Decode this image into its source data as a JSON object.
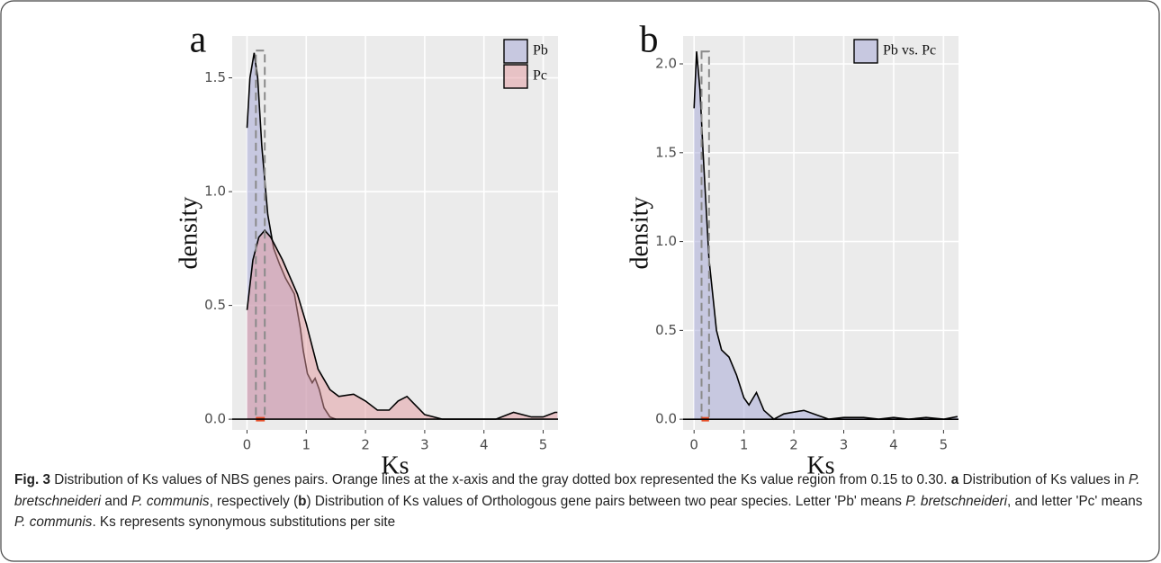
{
  "chart_data": [
    {
      "type": "density",
      "panel_label": "a",
      "xlabel": "Ks",
      "ylabel": "density",
      "xlim": [
        -0.25,
        5.25
      ],
      "ylim": [
        -0.047,
        1.684
      ],
      "xticks": [
        0,
        1,
        2,
        3,
        4,
        5
      ],
      "yticks": [
        {
          "value": 0,
          "label": "0.0"
        },
        0.5,
        {
          "value": 1,
          "label": "1.0"
        },
        1.5
      ],
      "grid": true,
      "legend": "top-right",
      "region": [
        0.15,
        0.3
      ],
      "region_top": 1.62,
      "region_color": "#e8502a",
      "series": [
        {
          "name": "Pb",
          "color": "#a3a6d6",
          "x": [
            0,
            0.05,
            0.12,
            0.18,
            0.25,
            0.35,
            0.45,
            0.55,
            0.65,
            0.8,
            0.9,
            0.95,
            1.02,
            1.1,
            1.15,
            1.22,
            1.3,
            1.4,
            1.5
          ],
          "values": [
            1.28,
            1.5,
            1.61,
            1.5,
            1.2,
            0.9,
            0.75,
            0.68,
            0.62,
            0.55,
            0.4,
            0.3,
            0.2,
            0.16,
            0.18,
            0.13,
            0.05,
            0.01,
            0
          ]
        },
        {
          "name": "Pc",
          "color": "#e39aa0",
          "x": [
            0,
            0.1,
            0.2,
            0.3,
            0.4,
            0.6,
            0.85,
            1.0,
            1.2,
            1.4,
            1.55,
            1.8,
            2.0,
            2.2,
            2.4,
            2.55,
            2.7,
            2.85,
            3.0,
            3.3,
            4.2,
            4.5,
            4.8,
            5.0,
            5.2,
            5.24
          ],
          "values": [
            0.48,
            0.7,
            0.8,
            0.83,
            0.8,
            0.7,
            0.55,
            0.42,
            0.22,
            0.13,
            0.1,
            0.11,
            0.08,
            0.04,
            0.04,
            0.08,
            0.1,
            0.06,
            0.02,
            0,
            0,
            0.03,
            0.01,
            0.01,
            0.03,
            0.03
          ]
        }
      ]
    },
    {
      "type": "density",
      "panel_label": "b",
      "xlabel": "Ks",
      "ylabel": "density",
      "xlim": [
        -0.22,
        5.3
      ],
      "ylim": [
        -0.06,
        2.157
      ],
      "xticks": [
        0,
        1,
        2,
        3,
        4,
        5
      ],
      "yticks": [
        {
          "value": 0,
          "label": "0.0"
        },
        0.5,
        {
          "value": 1,
          "label": "1.0"
        },
        1.5,
        {
          "value": 2,
          "label": "2.0"
        }
      ],
      "grid": true,
      "legend": "top-right",
      "region": [
        0.15,
        0.3
      ],
      "region_top": 2.07,
      "region_color": "#e8502a",
      "series": [
        {
          "name": "Pb vs. Pc",
          "color": "#a3a6d6",
          "x": [
            0,
            0.05,
            0.12,
            0.18,
            0.3,
            0.45,
            0.55,
            0.7,
            0.85,
            1.0,
            1.1,
            1.25,
            1.4,
            1.6,
            1.8,
            2.2,
            2.5,
            2.7,
            3.0,
            3.4,
            3.7,
            4.0,
            4.3,
            4.65,
            5.0,
            5.28
          ],
          "values": [
            1.75,
            2.07,
            1.85,
            1.5,
            0.9,
            0.5,
            0.39,
            0.35,
            0.25,
            0.12,
            0.08,
            0.15,
            0.05,
            0,
            0.03,
            0.05,
            0.02,
            0,
            0.01,
            0.01,
            0,
            0.01,
            0,
            0.01,
            0,
            0.015
          ]
        }
      ]
    }
  ],
  "caption": [
    {
      "text": "Fig. 3",
      "bold": true
    },
    {
      "text": " Distribution of Ks values of NBS genes pairs. Orange lines at the x-axis and the gray dotted box represented the Ks value region from 0.15 to 0.30. "
    },
    {
      "text": "a",
      "bold": true
    },
    {
      "text": " Distribution of Ks values in "
    },
    {
      "text": "P. bretschneideri",
      "italic": true
    },
    {
      "text": " and "
    },
    {
      "text": "P. communis",
      "italic": true
    },
    {
      "text": ", respectively ("
    },
    {
      "text": "b",
      "bold": true
    },
    {
      "text": ") Distribution of Ks values of Orthologous gene pairs between two pear species. Letter 'Pb' means "
    },
    {
      "text": "P. bretschneideri",
      "italic": true
    },
    {
      "text": ", and letter 'Pc' means "
    },
    {
      "text": "P. communis",
      "italic": true
    },
    {
      "text": ". Ks represents synonymous substitutions per site"
    }
  ]
}
